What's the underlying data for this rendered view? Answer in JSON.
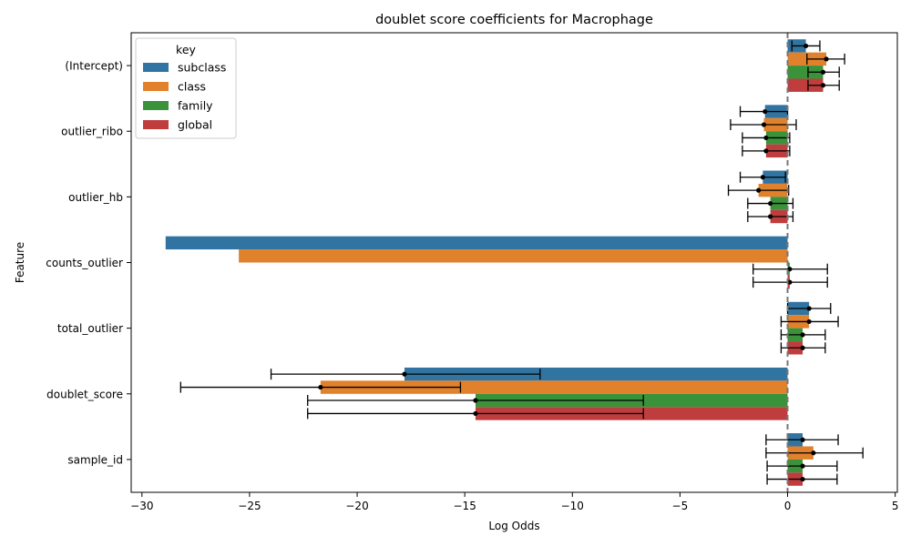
{
  "chart_data": {
    "type": "bar",
    "orientation": "horizontal",
    "title": "doublet score coefficients for Macrophage",
    "xlabel": "Log Odds",
    "ylabel": "Feature",
    "xlim": [
      -30.5,
      5.1
    ],
    "xticks": [
      -30,
      -25,
      -20,
      -15,
      -10,
      -5,
      0,
      5
    ],
    "xtick_labels": [
      "−30",
      "−25",
      "−20",
      "−15",
      "−10",
      "−5",
      "0",
      "5"
    ],
    "reference_line": 0,
    "grid": false,
    "legend": {
      "title": "key",
      "position": "top-left"
    },
    "categories": [
      "(Intercept)",
      "outlier_ribo",
      "outlier_hb",
      "counts_outlier",
      "total_outlier",
      "doublet_score",
      "sample_id"
    ],
    "series": [
      {
        "name": "subclass",
        "color": "#3274a1",
        "values": [
          0.85,
          -1.05,
          -1.15,
          -28.9,
          1.0,
          -17.8,
          0.7
        ],
        "ci_low": [
          0.2,
          -2.2,
          -2.2,
          null,
          0.0,
          -24.0,
          -1.0
        ],
        "ci_high": [
          1.5,
          0.0,
          -0.1,
          null,
          2.0,
          -11.5,
          2.35
        ]
      },
      {
        "name": "class",
        "color": "#e1812c",
        "values": [
          1.8,
          -1.1,
          -1.35,
          -25.5,
          1.0,
          -21.7,
          1.2
        ],
        "ci_low": [
          0.9,
          -2.65,
          -2.75,
          null,
          -0.3,
          -28.2,
          -1.0
        ],
        "ci_high": [
          2.65,
          0.4,
          0.05,
          null,
          2.35,
          -15.2,
          3.5
        ]
      },
      {
        "name": "family",
        "color": "#3a923a",
        "values": [
          1.65,
          -1.0,
          -0.8,
          0.1,
          0.7,
          -14.5,
          0.7
        ],
        "ci_low": [
          0.95,
          -2.1,
          -1.85,
          -1.6,
          -0.3,
          -22.3,
          -0.95
        ],
        "ci_high": [
          2.4,
          0.1,
          0.25,
          1.85,
          1.75,
          -6.7,
          2.3
        ]
      },
      {
        "name": "global",
        "color": "#c03d3e",
        "values": [
          1.65,
          -1.0,
          -0.8,
          0.1,
          0.7,
          -14.5,
          0.7
        ],
        "ci_low": [
          0.95,
          -2.1,
          -1.85,
          -1.6,
          -0.3,
          -22.3,
          -0.95
        ],
        "ci_high": [
          2.4,
          0.1,
          0.25,
          1.85,
          1.75,
          -6.7,
          2.3
        ]
      }
    ]
  }
}
